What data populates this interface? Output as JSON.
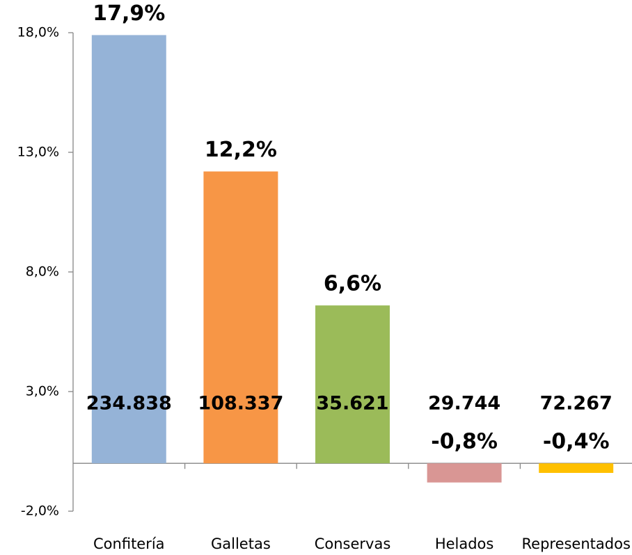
{
  "chart_data": {
    "type": "bar",
    "categories": [
      "Confitería",
      "Galletas",
      "Conservas",
      "Helados",
      "Representados"
    ],
    "values": [
      17.9,
      12.2,
      6.6,
      -0.8,
      -0.4
    ],
    "value_labels": [
      "17,9%",
      "12,2%",
      "6,6%",
      "-0,8%",
      "-0,4%"
    ],
    "volume_labels": [
      "234.838",
      "108.337",
      "35.621",
      "29.744",
      "72.267"
    ],
    "colors": [
      "#95b3d7",
      "#f79646",
      "#9bbb59",
      "#d99694",
      "#ffc000"
    ],
    "ylim": [
      -2,
      18
    ],
    "yticks": [
      {
        "value": -2,
        "label": "-2,0%"
      },
      {
        "value": 3,
        "label": "3,0%"
      },
      {
        "value": 8,
        "label": "8,0%"
      },
      {
        "value": 13,
        "label": "13,0%"
      },
      {
        "value": 18,
        "label": "18,0%"
      }
    ],
    "grid": false
  }
}
